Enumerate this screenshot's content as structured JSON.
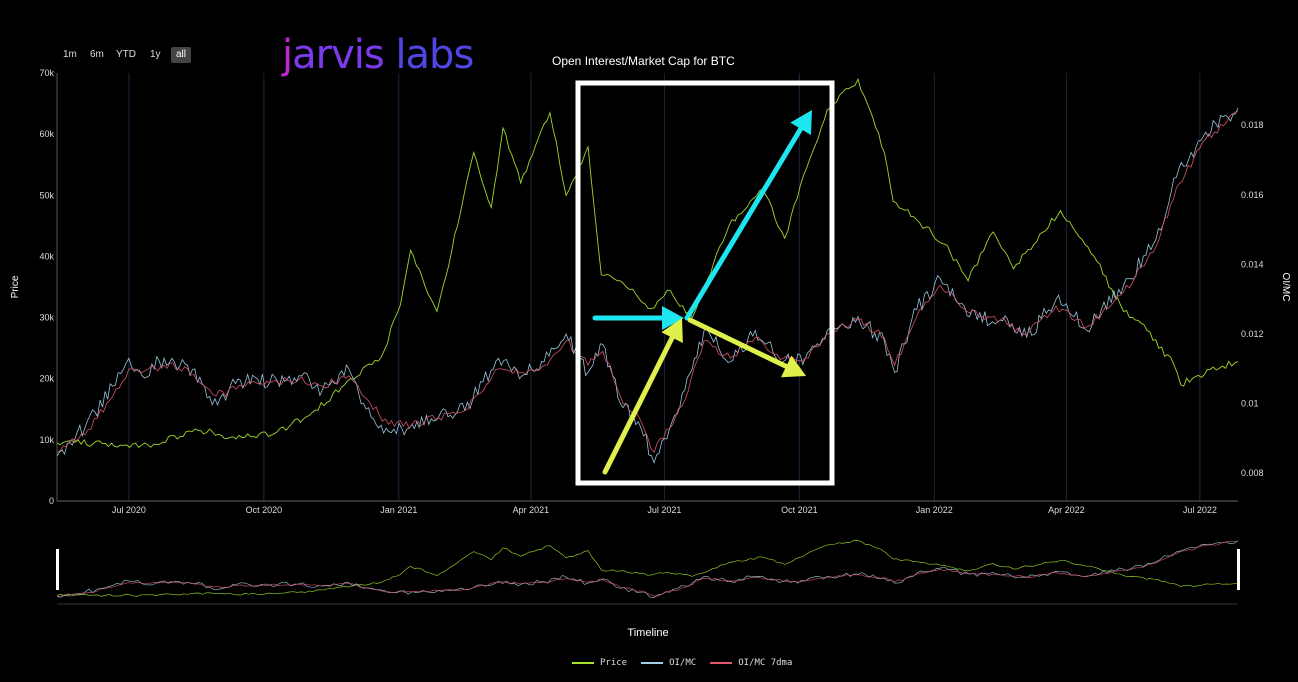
{
  "range_buttons": [
    "1m",
    "6m",
    "YTD",
    "1y",
    "all"
  ],
  "active_range": "all",
  "logo": {
    "part1": "j",
    "part2": "arvis",
    "part3": " labs"
  },
  "colors": {
    "price": "#a6e22e",
    "oi_mc": "#9ecfe8",
    "oi_mc_7dma": "#e0566a",
    "cyan_arrow": "#1ee6f0",
    "yellow_arrow": "#dff04a",
    "highlight_box": "#ffffff",
    "grid": "#1f2440"
  },
  "chart_data": {
    "type": "line",
    "title": "Open Interest/Market Cap for BTC",
    "ylabel": "Price",
    "y2label": "OI/MC",
    "xlabel": "Timeline",
    "x_ticks": [
      "Jul 2020",
      "Oct 2020",
      "Jan 2021",
      "Apr 2021",
      "Jul 2021",
      "Oct 2021",
      "Jan 2022",
      "Apr 2022",
      "Jul 2022"
    ],
    "y_ticks": [
      "0",
      "10k",
      "20k",
      "30k",
      "40k",
      "50k",
      "60k",
      "70k"
    ],
    "y2_ticks": [
      "0.008",
      "0.01",
      "0.012",
      "0.014",
      "0.016",
      "0.018"
    ],
    "ylim": [
      0,
      70000
    ],
    "y2lim": [
      0.0072,
      0.0195
    ],
    "x_range": [
      "2020-05-13",
      "2022-07-27"
    ],
    "legend_position": "bottom",
    "series": [
      {
        "name": "Price",
        "axis": "y",
        "x": [
          "2020-05-13",
          "2020-06-15",
          "2020-07-20",
          "2020-08-15",
          "2020-09-10",
          "2020-10-10",
          "2020-11-01",
          "2020-11-25",
          "2020-12-20",
          "2021-01-02",
          "2021-01-09",
          "2021-01-27",
          "2021-02-10",
          "2021-02-21",
          "2021-03-05",
          "2021-03-13",
          "2021-03-25",
          "2021-04-14",
          "2021-04-25",
          "2021-05-10",
          "2021-05-19",
          "2021-06-01",
          "2021-06-22",
          "2021-07-03",
          "2021-07-20",
          "2021-08-14",
          "2021-09-06",
          "2021-09-21",
          "2021-10-06",
          "2021-10-20",
          "2021-11-10",
          "2021-11-28",
          "2021-12-04",
          "2021-12-20",
          "2022-01-08",
          "2022-01-24",
          "2022-02-10",
          "2022-02-24",
          "2022-03-28",
          "2022-04-20",
          "2022-05-10",
          "2022-05-20",
          "2022-06-13",
          "2022-06-18",
          "2022-07-08",
          "2022-07-27"
        ],
        "values": [
          9500,
          9400,
          9200,
          11800,
          10500,
          11300,
          14000,
          19000,
          23500,
          32000,
          41000,
          31000,
          45000,
          57000,
          48000,
          61000,
          52000,
          63500,
          50000,
          58000,
          37000,
          36000,
          31500,
          34500,
          30000,
          45000,
          51000,
          43000,
          54500,
          64000,
          69000,
          57000,
          49000,
          46000,
          42000,
          36000,
          44000,
          38000,
          47500,
          40000,
          31000,
          29500,
          22500,
          19000,
          21500,
          22800
        ]
      },
      {
        "name": "OI/MC",
        "axis": "y2",
        "x": [
          "2020-05-13",
          "2020-06-01",
          "2020-06-20",
          "2020-07-01",
          "2020-07-10",
          "2020-07-25",
          "2020-08-10",
          "2020-08-25",
          "2020-09-05",
          "2020-09-10",
          "2020-10-05",
          "2020-10-25",
          "2020-11-10",
          "2020-11-28",
          "2020-12-08",
          "2020-12-25",
          "2021-01-10",
          "2021-01-28",
          "2021-02-15",
          "2021-03-10",
          "2021-03-26",
          "2021-04-10",
          "2021-04-25",
          "2021-05-10",
          "2021-05-20",
          "2021-06-01",
          "2021-06-15",
          "2021-06-24",
          "2021-07-15",
          "2021-07-28",
          "2021-08-15",
          "2021-09-01",
          "2021-09-20",
          "2021-10-05",
          "2021-10-20",
          "2021-11-10",
          "2021-11-28",
          "2021-12-05",
          "2021-12-20",
          "2022-01-05",
          "2022-01-25",
          "2022-02-15",
          "2022-03-05",
          "2022-03-25",
          "2022-04-15",
          "2022-05-10",
          "2022-06-01",
          "2022-06-15",
          "2022-07-05",
          "2022-07-27"
        ],
        "values": [
          0.0085,
          0.0093,
          0.0105,
          0.0113,
          0.0108,
          0.0113,
          0.0111,
          0.0102,
          0.0101,
          0.0107,
          0.0106,
          0.0108,
          0.0104,
          0.011,
          0.01,
          0.0092,
          0.0094,
          0.0096,
          0.0098,
          0.0113,
          0.0108,
          0.0112,
          0.012,
          0.0109,
          0.0117,
          0.01,
          0.0093,
          0.0083,
          0.0104,
          0.0121,
          0.0112,
          0.0121,
          0.0112,
          0.0113,
          0.0121,
          0.0125,
          0.0118,
          0.0109,
          0.0127,
          0.0136,
          0.0125,
          0.0124,
          0.0119,
          0.013,
          0.0121,
          0.0134,
          0.0147,
          0.0165,
          0.0178,
          0.0185
        ]
      },
      {
        "name": "OI/MC 7dma",
        "axis": "y2",
        "x": [
          "2020-05-13",
          "2020-06-01",
          "2020-06-20",
          "2020-07-01",
          "2020-07-10",
          "2020-07-25",
          "2020-08-10",
          "2020-08-25",
          "2020-09-05",
          "2020-09-10",
          "2020-10-05",
          "2020-10-25",
          "2020-11-10",
          "2020-11-28",
          "2020-12-08",
          "2020-12-25",
          "2021-01-10",
          "2021-01-28",
          "2021-02-15",
          "2021-03-10",
          "2021-03-26",
          "2021-04-10",
          "2021-04-25",
          "2021-05-10",
          "2021-05-20",
          "2021-06-01",
          "2021-06-15",
          "2021-06-24",
          "2021-07-15",
          "2021-07-28",
          "2021-08-15",
          "2021-09-01",
          "2021-09-20",
          "2021-10-05",
          "2021-10-20",
          "2021-11-10",
          "2021-11-28",
          "2021-12-05",
          "2021-12-20",
          "2022-01-05",
          "2022-01-25",
          "2022-02-15",
          "2022-03-05",
          "2022-03-25",
          "2022-04-15",
          "2022-05-10",
          "2022-06-01",
          "2022-06-15",
          "2022-07-05",
          "2022-07-27"
        ],
        "values": [
          0.0086,
          0.0091,
          0.0102,
          0.011,
          0.0109,
          0.0111,
          0.011,
          0.0104,
          0.0102,
          0.0105,
          0.0106,
          0.0107,
          0.0105,
          0.0108,
          0.0102,
          0.0094,
          0.0094,
          0.0096,
          0.0098,
          0.011,
          0.0109,
          0.0111,
          0.0118,
          0.0111,
          0.0115,
          0.0102,
          0.0095,
          0.0086,
          0.0101,
          0.0118,
          0.0113,
          0.0119,
          0.0113,
          0.0113,
          0.012,
          0.0124,
          0.0119,
          0.0111,
          0.0125,
          0.0134,
          0.0126,
          0.0124,
          0.012,
          0.0128,
          0.0122,
          0.0132,
          0.0145,
          0.0162,
          0.0176,
          0.0184
        ]
      }
    ]
  }
}
